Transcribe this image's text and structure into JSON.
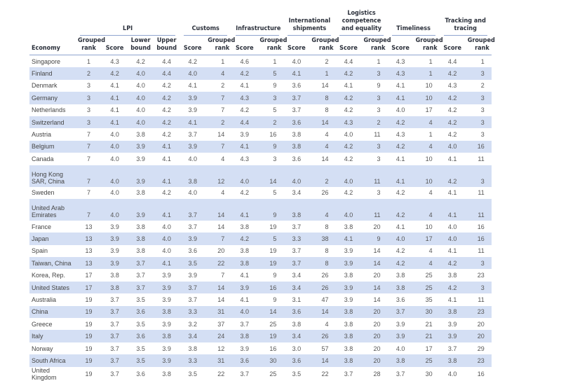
{
  "header": {
    "groups": [
      "LPI",
      "Customs",
      "Infrastructure",
      "International shipments",
      "Logistics competence and equality",
      "Timeliness",
      "Tracking and tracing"
    ],
    "economy": "Economy",
    "grouped_rank": "Grouped rank",
    "score": "Score",
    "lower_bound": "Lower bound",
    "upper_bound": "Upper bound"
  },
  "colors": {
    "stripe": "#d4dff4",
    "rule": "#8fa4cf"
  },
  "rows": [
    [
      "Singapore",
      "1",
      "4.3",
      "4.2",
      "4.4",
      "4.2",
      "1",
      "4.6",
      "1",
      "4.0",
      "2",
      "4.4",
      "1",
      "4.3",
      "1",
      "4.4",
      "1"
    ],
    [
      "Finland",
      "2",
      "4.2",
      "4.0",
      "4.4",
      "4.0",
      "4",
      "4.2",
      "5",
      "4.1",
      "1",
      "4.2",
      "3",
      "4.3",
      "1",
      "4.2",
      "3"
    ],
    [
      "Denmark",
      "3",
      "4.1",
      "4.0",
      "4.2",
      "4.1",
      "2",
      "4.1",
      "9",
      "3.6",
      "14",
      "4.1",
      "9",
      "4.1",
      "10",
      "4.3",
      "2"
    ],
    [
      "Germany",
      "3",
      "4.1",
      "4.0",
      "4.2",
      "3.9",
      "7",
      "4.3",
      "3",
      "3.7",
      "8",
      "4.2",
      "3",
      "4.1",
      "10",
      "4.2",
      "3"
    ],
    [
      "Netherlands",
      "3",
      "4.1",
      "4.0",
      "4.2",
      "3.9",
      "7",
      "4.2",
      "5",
      "3.7",
      "8",
      "4.2",
      "3",
      "4.0",
      "17",
      "4.2",
      "3"
    ],
    [
      "Switzerland",
      "3",
      "4.1",
      "4.0",
      "4.2",
      "4.1",
      "2",
      "4.4",
      "2",
      "3.6",
      "14",
      "4.3",
      "2",
      "4.2",
      "4",
      "4.2",
      "3"
    ],
    [
      "Austria",
      "7",
      "4.0",
      "3.8",
      "4.2",
      "3.7",
      "14",
      "3.9",
      "16",
      "3.8",
      "4",
      "4.0",
      "11",
      "4.3",
      "1",
      "4.2",
      "3"
    ],
    [
      "Belgium",
      "7",
      "4.0",
      "3.9",
      "4.1",
      "3.9",
      "7",
      "4.1",
      "9",
      "3.8",
      "4",
      "4.2",
      "3",
      "4.2",
      "4",
      "4.0",
      "16"
    ],
    [
      "Canada",
      "7",
      "4.0",
      "3.9",
      "4.1",
      "4.0",
      "4",
      "4.3",
      "3",
      "3.6",
      "14",
      "4.2",
      "3",
      "4.1",
      "10",
      "4.1",
      "11"
    ],
    [
      "Hong Kong SAR, China",
      "7",
      "4.0",
      "3.9",
      "4.1",
      "3.8",
      "12",
      "4.0",
      "14",
      "4.0",
      "2",
      "4.0",
      "11",
      "4.1",
      "10",
      "4.2",
      "3"
    ],
    [
      "Sweden",
      "7",
      "4.0",
      "3.8",
      "4.2",
      "4.0",
      "4",
      "4.2",
      "5",
      "3.4",
      "26",
      "4.2",
      "3",
      "4.2",
      "4",
      "4.1",
      "11"
    ],
    [
      "United Arab Emirates",
      "7",
      "4.0",
      "3.9",
      "4.1",
      "3.7",
      "14",
      "4.1",
      "9",
      "3.8",
      "4",
      "4.0",
      "11",
      "4.2",
      "4",
      "4.1",
      "11"
    ],
    [
      "France",
      "13",
      "3.9",
      "3.8",
      "4.0",
      "3.7",
      "14",
      "3.8",
      "19",
      "3.7",
      "8",
      "3.8",
      "20",
      "4.1",
      "10",
      "4.0",
      "16"
    ],
    [
      "Japan",
      "13",
      "3.9",
      "3.8",
      "4.0",
      "3.9",
      "7",
      "4.2",
      "5",
      "3.3",
      "38",
      "4.1",
      "9",
      "4.0",
      "17",
      "4.0",
      "16"
    ],
    [
      "Spain",
      "13",
      "3.9",
      "3.8",
      "4.0",
      "3.6",
      "20",
      "3.8",
      "19",
      "3.7",
      "8",
      "3.9",
      "14",
      "4.2",
      "4",
      "4.1",
      "11"
    ],
    [
      "Taiwan, China",
      "13",
      "3.9",
      "3.7",
      "4.1",
      "3.5",
      "22",
      "3.8",
      "19",
      "3.7",
      "8",
      "3.9",
      "14",
      "4.2",
      "4",
      "4.2",
      "3"
    ],
    [
      "Korea, Rep.",
      "17",
      "3.8",
      "3.7",
      "3.9",
      "3.9",
      "7",
      "4.1",
      "9",
      "3.4",
      "26",
      "3.8",
      "20",
      "3.8",
      "25",
      "3.8",
      "23"
    ],
    [
      "United States",
      "17",
      "3.8",
      "3.7",
      "3.9",
      "3.7",
      "14",
      "3.9",
      "16",
      "3.4",
      "26",
      "3.9",
      "14",
      "3.8",
      "25",
      "4.2",
      "3"
    ],
    [
      "Australia",
      "19",
      "3.7",
      "3.5",
      "3.9",
      "3.7",
      "14",
      "4.1",
      "9",
      "3.1",
      "47",
      "3.9",
      "14",
      "3.6",
      "35",
      "4.1",
      "11"
    ],
    [
      "China",
      "19",
      "3.7",
      "3.6",
      "3.8",
      "3.3",
      "31",
      "4.0",
      "14",
      "3.6",
      "14",
      "3.8",
      "20",
      "3.7",
      "30",
      "3.8",
      "23"
    ],
    [
      "Greece",
      "19",
      "3.7",
      "3.5",
      "3.9",
      "3.2",
      "37",
      "3.7",
      "25",
      "3.8",
      "4",
      "3.8",
      "20",
      "3.9",
      "21",
      "3.9",
      "20"
    ],
    [
      "Italy",
      "19",
      "3.7",
      "3.6",
      "3.8",
      "3.4",
      "24",
      "3.8",
      "19",
      "3.4",
      "26",
      "3.8",
      "20",
      "3.9",
      "21",
      "3.9",
      "20"
    ],
    [
      "Norway",
      "19",
      "3.7",
      "3.5",
      "3.9",
      "3.8",
      "12",
      "3.9",
      "16",
      "3.0",
      "57",
      "3.8",
      "20",
      "4.0",
      "17",
      "3.7",
      "29"
    ],
    [
      "South Africa",
      "19",
      "3.7",
      "3.5",
      "3.9",
      "3.3",
      "31",
      "3.6",
      "30",
      "3.6",
      "14",
      "3.8",
      "20",
      "3.8",
      "25",
      "3.8",
      "23"
    ],
    [
      "United Kingdom",
      "19",
      "3.7",
      "3.6",
      "3.8",
      "3.5",
      "22",
      "3.7",
      "25",
      "3.5",
      "22",
      "3.7",
      "28",
      "3.7",
      "30",
      "4.0",
      "16"
    ]
  ]
}
